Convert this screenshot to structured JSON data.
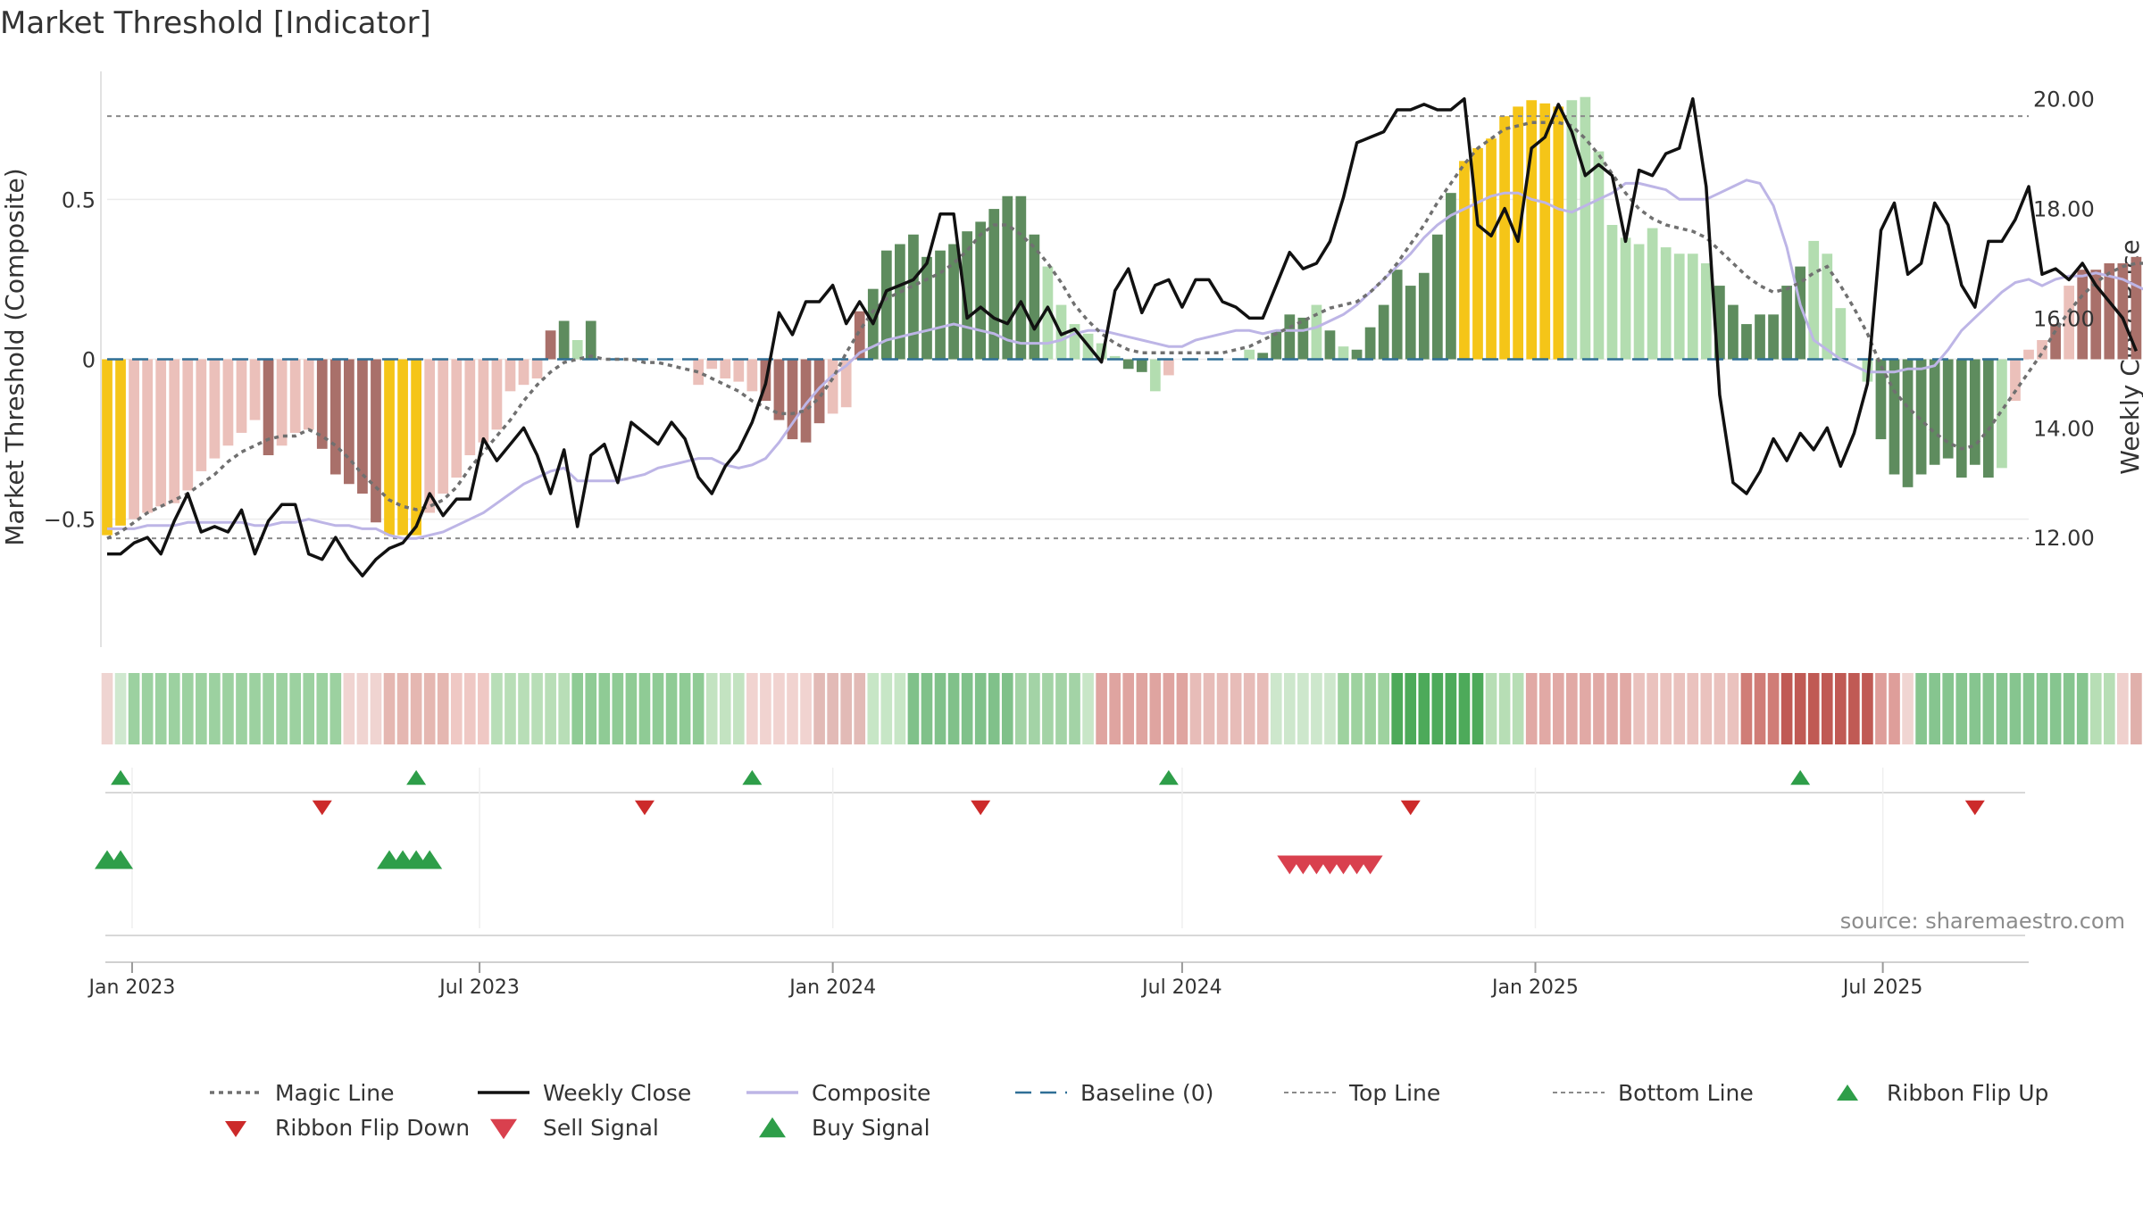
{
  "title": "Market Threshold [Indicator]",
  "source": "source: sharemaestro.com",
  "colors": {
    "highlight": "#F5C518",
    "dark_green": "#5E8C5E",
    "light_green": "#B3DDB0",
    "dark_red": "#A9706A",
    "light_red": "#EBC0BA",
    "magic": "#707070",
    "close": "#111111",
    "composite": "#BDB5E6",
    "baseline": "#2F6F96",
    "buy": "#2E9E49",
    "sell": "#D9404E",
    "flip_down": "#CC2A2A"
  },
  "chart_data": {
    "type": "bar",
    "title": "Market Threshold [Indicator]",
    "ylabel_left": "Market Threshold (Composite)",
    "ylabel_right": "Weekly Close Price",
    "ylim_left": [
      -0.9,
      0.9
    ],
    "ylim_right": [
      10.0,
      20.5
    ],
    "yticks_left": [
      {
        "v": 0.5,
        "label": "0.5"
      },
      {
        "v": 0,
        "label": "0"
      },
      {
        "v": -0.5,
        "label": "−0.5"
      }
    ],
    "yticks_right": [
      {
        "v": 20,
        "label": "20.00"
      },
      {
        "v": 18,
        "label": "18.00"
      },
      {
        "v": 16,
        "label": "16.00"
      },
      {
        "v": 14,
        "label": "14.00"
      },
      {
        "v": 12,
        "label": "12.00"
      }
    ],
    "x_start": "2022-12-19",
    "x_end": "2025-09-15",
    "x_ticks": [
      {
        "date": "2023-01-01",
        "label": "Jan 2023"
      },
      {
        "date": "2023-07-01",
        "label": "Jul 2023"
      },
      {
        "date": "2024-01-01",
        "label": "Jan 2024"
      },
      {
        "date": "2024-07-01",
        "label": "Jul 2024"
      },
      {
        "date": "2025-01-01",
        "label": "Jan 2025"
      },
      {
        "date": "2025-07-01",
        "label": "Jul 2025"
      }
    ],
    "top_line": 0.76,
    "bottom_line": -0.56,
    "baseline": 0,
    "composite_bars": [
      -0.55,
      -0.52,
      -0.5,
      -0.48,
      -0.46,
      -0.45,
      -0.41,
      -0.35,
      -0.31,
      -0.27,
      -0.23,
      -0.19,
      -0.3,
      -0.27,
      -0.23,
      -0.22,
      -0.28,
      -0.36,
      -0.39,
      -0.42,
      -0.51,
      -0.55,
      -0.55,
      -0.55,
      -0.48,
      -0.42,
      -0.37,
      -0.3,
      -0.26,
      -0.22,
      -0.1,
      -0.08,
      -0.06,
      0.09,
      0.12,
      0.06,
      0.12,
      0.0,
      0.0,
      0.0,
      0.0,
      0.0,
      0.0,
      0.0,
      -0.08,
      -0.03,
      -0.06,
      -0.07,
      -0.1,
      -0.13,
      -0.19,
      -0.25,
      -0.26,
      -0.2,
      -0.17,
      -0.15,
      0.15,
      0.22,
      0.34,
      0.36,
      0.39,
      0.32,
      0.34,
      0.36,
      0.4,
      0.43,
      0.47,
      0.51,
      0.51,
      0.39,
      0.29,
      0.17,
      0.11,
      0.08,
      0.05,
      0.01,
      -0.03,
      -0.04,
      -0.1,
      -0.05,
      0.0,
      0.0,
      0.0,
      0.0,
      0.0,
      0.03,
      0.02,
      0.09,
      0.14,
      0.13,
      0.17,
      0.09,
      0.04,
      0.03,
      0.1,
      0.17,
      0.28,
      0.23,
      0.27,
      0.39,
      0.52,
      0.62,
      0.66,
      0.69,
      0.76,
      0.79,
      0.81,
      0.8,
      0.79,
      0.81,
      0.82,
      0.65,
      0.42,
      0.38,
      0.36,
      0.41,
      0.35,
      0.33,
      0.33,
      0.3,
      0.23,
      0.17,
      0.11,
      0.14,
      0.14,
      0.23,
      0.29,
      0.37,
      0.33,
      0.16,
      0.0,
      -0.07,
      -0.25,
      -0.36,
      -0.4,
      -0.36,
      -0.33,
      -0.31,
      -0.37,
      -0.33,
      -0.37,
      -0.34,
      -0.13,
      0.03,
      0.06,
      0.11,
      0.23,
      0.28,
      0.28,
      0.3,
      0.3,
      0.32,
      0.35,
      0.42,
      0.33,
      0.32,
      0.28,
      0.17,
      0.09,
      0.01,
      -0.05
    ],
    "bar_colors": "YYLLLLLLLLLLDLLLDDDDDYYYLLLLLLLLLDDLDLLLLLLLLLLLLDDDDDLLDDDDDDDDDDDDDDLLLLLLDDLLLLLLDLDDDDLDLDDDDDDDDYYYYYYYYLLLLLLLLLLLDDDDDDDLLLLLDDDDDDDDDLLLLDLDDDDDDDDDDDLLLLL",
    "bar_tone": "RRRRRRRRRRRRRRRRRRRRRRRRRRRRRRRRRRGGGGGGGGGRRRRRRRRRRRRRRGGGGGGGGGGGGGGGGGGGGGGRRRRGGGGGGGGGGGGGGGGGGGGGGGGGGGGGGGGGGGGGGGGGGGGGGGGGGGGGGGGGGGRRRRRRRRRRRRGGGGGGGGGGGGGGGGGGGR",
    "weekly_close": [
      11.7,
      11.7,
      11.9,
      12.0,
      11.7,
      12.3,
      12.8,
      12.1,
      12.2,
      12.1,
      12.5,
      11.7,
      12.3,
      12.6,
      12.6,
      11.7,
      11.6,
      12.0,
      11.6,
      11.3,
      11.6,
      11.8,
      11.9,
      12.2,
      12.8,
      12.4,
      12.7,
      12.7,
      13.8,
      13.4,
      13.7,
      14.0,
      13.5,
      12.8,
      13.6,
      12.2,
      13.5,
      13.7,
      13.0,
      14.1,
      13.9,
      13.7,
      14.1,
      13.8,
      13.1,
      12.8,
      13.3,
      13.6,
      14.1,
      14.8,
      16.1,
      15.7,
      16.3,
      16.3,
      16.6,
      15.9,
      16.3,
      15.9,
      16.5,
      16.6,
      16.7,
      17.0,
      17.9,
      17.9,
      16.0,
      16.2,
      16.0,
      15.9,
      16.3,
      15.8,
      16.2,
      15.7,
      15.8,
      15.5,
      15.2,
      16.5,
      16.9,
      16.1,
      16.6,
      16.7,
      16.2,
      16.7,
      16.7,
      16.3,
      16.2,
      16.0,
      16.0,
      16.6,
      17.2,
      16.9,
      17.0,
      17.4,
      18.2,
      19.2,
      19.3,
      19.4,
      19.8,
      19.8,
      19.9,
      19.8,
      19.8,
      20.0,
      17.7,
      17.5,
      18.0,
      17.4,
      19.1,
      19.3,
      19.9,
      19.4,
      18.6,
      18.8,
      18.6,
      17.4,
      18.7,
      18.6,
      19.0,
      19.1,
      20.0,
      18.4,
      14.6,
      13.0,
      12.8,
      13.2,
      13.8,
      13.4,
      13.9,
      13.6,
      14.0,
      13.3,
      13.9,
      14.8,
      17.6,
      18.1,
      16.8,
      17.0,
      18.1,
      17.7,
      16.6,
      16.2,
      17.4,
      17.4,
      17.8,
      18.4,
      16.8,
      16.9,
      16.7,
      17.0,
      16.6,
      16.3,
      16.0,
      15.4
    ],
    "magic_line": [
      -0.56,
      -0.54,
      -0.51,
      -0.48,
      -0.46,
      -0.44,
      -0.42,
      -0.39,
      -0.36,
      -0.32,
      -0.29,
      -0.27,
      -0.25,
      -0.24,
      -0.24,
      -0.22,
      -0.24,
      -0.27,
      -0.31,
      -0.36,
      -0.4,
      -0.44,
      -0.46,
      -0.47,
      -0.46,
      -0.44,
      -0.4,
      -0.34,
      -0.29,
      -0.24,
      -0.19,
      -0.13,
      -0.08,
      -0.04,
      -0.01,
      0.0,
      0.01,
      0.0,
      0.0,
      0.0,
      -0.01,
      -0.01,
      -0.02,
      -0.03,
      -0.04,
      -0.06,
      -0.08,
      -0.1,
      -0.13,
      -0.15,
      -0.17,
      -0.17,
      -0.16,
      -0.12,
      -0.06,
      0.02,
      0.09,
      0.15,
      0.19,
      0.21,
      0.23,
      0.25,
      0.27,
      0.3,
      0.34,
      0.39,
      0.42,
      0.42,
      0.39,
      0.35,
      0.3,
      0.24,
      0.17,
      0.12,
      0.08,
      0.05,
      0.03,
      0.02,
      0.02,
      0.02,
      0.02,
      0.02,
      0.02,
      0.02,
      0.03,
      0.04,
      0.06,
      0.08,
      0.1,
      0.12,
      0.14,
      0.16,
      0.17,
      0.18,
      0.21,
      0.25,
      0.3,
      0.36,
      0.42,
      0.49,
      0.55,
      0.61,
      0.66,
      0.69,
      0.72,
      0.73,
      0.74,
      0.74,
      0.74,
      0.73,
      0.69,
      0.64,
      0.58,
      0.52,
      0.47,
      0.44,
      0.42,
      0.41,
      0.4,
      0.38,
      0.34,
      0.3,
      0.26,
      0.23,
      0.21,
      0.22,
      0.24,
      0.27,
      0.29,
      0.23,
      0.16,
      0.08,
      -0.02,
      -0.1,
      -0.15,
      -0.19,
      -0.23,
      -0.26,
      -0.28,
      -0.27,
      -0.22,
      -0.16,
      -0.1,
      -0.04,
      0.02,
      0.09,
      0.15,
      0.2,
      0.24,
      0.27,
      0.29,
      0.3,
      0.3,
      0.29,
      0.27,
      0.24,
      0.21,
      0.15,
      0.09
    ],
    "composite_line": [
      -0.53,
      -0.53,
      -0.53,
      -0.52,
      -0.52,
      -0.52,
      -0.51,
      -0.51,
      -0.51,
      -0.51,
      -0.51,
      -0.52,
      -0.52,
      -0.51,
      -0.51,
      -0.5,
      -0.51,
      -0.52,
      -0.52,
      -0.53,
      -0.53,
      -0.55,
      -0.56,
      -0.56,
      -0.55,
      -0.54,
      -0.52,
      -0.5,
      -0.48,
      -0.45,
      -0.42,
      -0.39,
      -0.37,
      -0.35,
      -0.34,
      -0.38,
      -0.38,
      -0.38,
      -0.38,
      -0.37,
      -0.36,
      -0.34,
      -0.33,
      -0.32,
      -0.31,
      -0.31,
      -0.33,
      -0.34,
      -0.33,
      -0.31,
      -0.26,
      -0.2,
      -0.14,
      -0.09,
      -0.05,
      -0.02,
      0.02,
      0.04,
      0.06,
      0.07,
      0.08,
      0.09,
      0.1,
      0.11,
      0.1,
      0.09,
      0.08,
      0.06,
      0.05,
      0.05,
      0.05,
      0.06,
      0.08,
      0.09,
      0.09,
      0.08,
      0.07,
      0.06,
      0.05,
      0.04,
      0.04,
      0.06,
      0.07,
      0.08,
      0.09,
      0.09,
      0.08,
      0.09,
      0.09,
      0.09,
      0.1,
      0.12,
      0.14,
      0.17,
      0.21,
      0.25,
      0.29,
      0.33,
      0.38,
      0.42,
      0.45,
      0.47,
      0.49,
      0.51,
      0.52,
      0.52,
      0.5,
      0.49,
      0.47,
      0.46,
      0.48,
      0.5,
      0.52,
      0.55,
      0.55,
      0.54,
      0.53,
      0.5,
      0.5,
      0.5,
      0.52,
      0.54,
      0.56,
      0.55,
      0.48,
      0.35,
      0.17,
      0.06,
      0.03,
      0.0,
      -0.02,
      -0.04,
      -0.04,
      -0.04,
      -0.03,
      -0.03,
      -0.02,
      0.03,
      0.09,
      0.13,
      0.17,
      0.21,
      0.24,
      0.25,
      0.23,
      0.25,
      0.26,
      0.26,
      0.27,
      0.26,
      0.25,
      0.23,
      0.21,
      0.19,
      0.18,
      0.17,
      0.15,
      0.13
    ],
    "ribbon": [
      {
        "color": "#EFD4D1",
        "n": 1
      },
      {
        "color": "#CFE8CF",
        "n": 1
      },
      {
        "color": "#9CD1A0",
        "n": 16
      },
      {
        "color": "#F0D4D1",
        "n": 3
      },
      {
        "color": "#E5B7B1",
        "n": 5
      },
      {
        "color": "#EFC8C4",
        "n": 3
      },
      {
        "color": "#B8DEB7",
        "n": 6
      },
      {
        "color": "#8FCB95",
        "n": 10
      },
      {
        "color": "#C3E3C1",
        "n": 3
      },
      {
        "color": "#F1D3D0",
        "n": 5
      },
      {
        "color": "#E2BAB6",
        "n": 4
      },
      {
        "color": "#C7E6C6",
        "n": 3
      },
      {
        "color": "#80C18A",
        "n": 8
      },
      {
        "color": "#A3D3A6",
        "n": 5
      },
      {
        "color": "#C8E6C7",
        "n": 1
      },
      {
        "color": "#DFA4A0",
        "n": 7
      },
      {
        "color": "#E7BCB8",
        "n": 6
      },
      {
        "color": "#CDE7CC",
        "n": 5
      },
      {
        "color": "#9ED29F",
        "n": 4
      },
      {
        "color": "#4DAA5A",
        "n": 7
      },
      {
        "color": "#B7DEB5",
        "n": 3
      },
      {
        "color": "#E1A9A5",
        "n": 8
      },
      {
        "color": "#EAC2BE",
        "n": 8
      },
      {
        "color": "#D07D77",
        "n": 3
      },
      {
        "color": "#C05A54",
        "n": 7
      },
      {
        "color": "#DE9E9A",
        "n": 2
      },
      {
        "color": "#F0D5D2",
        "n": 1
      },
      {
        "color": "#86C58F",
        "n": 13
      },
      {
        "color": "#B7DEB5",
        "n": 2
      },
      {
        "color": "#EFD0CD",
        "n": 1
      },
      {
        "color": "#E0B0AB",
        "n": 3
      }
    ],
    "series": [
      {
        "name": "Magic Line"
      },
      {
        "name": "Weekly Close"
      },
      {
        "name": "Composite"
      },
      {
        "name": "Baseline (0)"
      },
      {
        "name": "Top Line"
      },
      {
        "name": "Bottom Line"
      },
      {
        "name": "Ribbon Flip Up",
        "dates": [
          "2022-12-26",
          "2023-05-29",
          "2023-11-20",
          "2024-06-24",
          "2025-05-19"
        ]
      },
      {
        "name": "Ribbon Flip Down",
        "dates": [
          "2023-04-10",
          "2023-09-25",
          "2024-03-18",
          "2024-10-28",
          "2025-08-18"
        ]
      },
      {
        "name": "Sell Signal",
        "dates": [
          "2024-08-26",
          "2024-09-02",
          "2024-09-09",
          "2024-09-16",
          "2024-09-23",
          "2024-09-30",
          "2024-10-07"
        ]
      },
      {
        "name": "Buy Signal",
        "dates": [
          "2022-12-19",
          "2022-12-26",
          "2023-05-15",
          "2023-05-22",
          "2023-05-29",
          "2023-06-05"
        ]
      }
    ]
  },
  "legend": [
    {
      "label": "Magic Line",
      "sym": "dotted",
      "color": "#707070"
    },
    {
      "label": "Weekly Close",
      "sym": "solid",
      "color": "#111111"
    },
    {
      "label": "Composite",
      "sym": "solid",
      "color": "#BDB5E6"
    },
    {
      "label": "Baseline (0)",
      "sym": "dashed",
      "color": "#2F6F96"
    },
    {
      "label": "Top Line",
      "sym": "dotted-thin",
      "color": "#8A8A8A"
    },
    {
      "label": "Bottom Line",
      "sym": "dotted-thin",
      "color": "#8A8A8A"
    },
    {
      "label": "Ribbon Flip Up",
      "sym": "tri-up",
      "color": "#2E9E49"
    },
    {
      "label": "Ribbon Flip Down",
      "sym": "tri-down",
      "color": "#CC2A2A"
    },
    {
      "label": "Sell Signal",
      "sym": "tri-down-lg",
      "color": "#D9404E"
    },
    {
      "label": "Buy Signal",
      "sym": "tri-up-lg",
      "color": "#2E9E49"
    }
  ]
}
